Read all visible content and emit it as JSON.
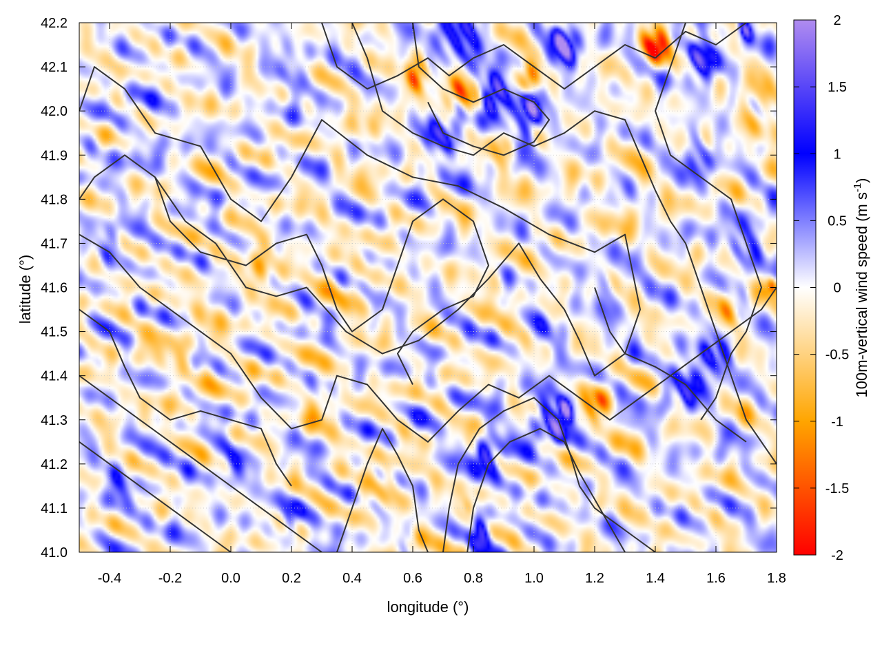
{
  "chart_data": {
    "type": "heatmap",
    "title": "",
    "xlabel": "longitude (°)",
    "ylabel": "latitude (°)",
    "colorbar_label": "100m-vertical wind speed (m s",
    "colorbar_label_sup": "-1",
    "colorbar_label_end": ")",
    "xlim": [
      -0.5,
      1.8
    ],
    "ylim": [
      41.0,
      42.2
    ],
    "clim": [
      -2,
      2
    ],
    "grid": true,
    "x_ticks": [
      "-0.4",
      "-0.2",
      "0.0",
      "0.2",
      "0.4",
      "0.6",
      "0.8",
      "1.0",
      "1.2",
      "1.4",
      "1.6",
      "1.8"
    ],
    "x_tick_values": [
      -0.4,
      -0.2,
      0.0,
      0.2,
      0.4,
      0.6,
      0.8,
      1.0,
      1.2,
      1.4,
      1.6,
      1.8
    ],
    "y_ticks": [
      "41.0",
      "41.1",
      "41.2",
      "41.3",
      "41.4",
      "41.5",
      "41.6",
      "41.7",
      "41.8",
      "41.9",
      "42.0",
      "42.1",
      "42.2"
    ],
    "y_tick_values": [
      41.0,
      41.1,
      41.2,
      41.3,
      41.4,
      41.5,
      41.6,
      41.7,
      41.8,
      41.9,
      42.0,
      42.1,
      42.2
    ],
    "colorbar_ticks": [
      "2",
      "1.5",
      "1",
      "0.5",
      "0",
      "-0.5",
      "-1",
      "-1.5",
      "-2"
    ],
    "colorbar_tick_values": [
      2,
      1.5,
      1,
      0.5,
      0,
      -0.5,
      -1,
      -1.5,
      -2
    ],
    "colormap": [
      {
        "value": -2,
        "color": "#ff0000"
      },
      {
        "value": -1,
        "color": "#ffa500"
      },
      {
        "value": 0,
        "color": "#ffffff"
      },
      {
        "value": 1,
        "color": "#0000ff"
      },
      {
        "value": 2,
        "color": "#b08cf0"
      }
    ],
    "hotspots": [
      {
        "lon": 0.75,
        "lat": 42.04,
        "value": -1.9,
        "r": 0.06
      },
      {
        "lon": 0.62,
        "lat": 42.08,
        "value": -1.8,
        "r": 0.04
      },
      {
        "lon": 0.98,
        "lat": 42.07,
        "value": -1.8,
        "r": 0.04
      },
      {
        "lon": 1.4,
        "lat": 42.15,
        "value": -1.8,
        "r": 0.05
      },
      {
        "lon": 0.86,
        "lat": 42.03,
        "value": 1.9,
        "r": 0.05
      },
      {
        "lon": 0.98,
        "lat": 42.0,
        "value": 1.8,
        "r": 0.06
      },
      {
        "lon": 0.75,
        "lat": 42.15,
        "value": 1.4,
        "r": 0.08
      },
      {
        "lon": 1.1,
        "lat": 42.15,
        "value": 1.9,
        "r": 0.05
      },
      {
        "lon": 1.55,
        "lat": 42.12,
        "value": 1.3,
        "r": 0.06
      },
      {
        "lon": 1.7,
        "lat": 42.19,
        "value": 1.9,
        "r": 0.03
      },
      {
        "lon": 0.7,
        "lat": 41.95,
        "value": 1.2,
        "r": 0.07
      },
      {
        "lon": 0.9,
        "lat": 41.92,
        "value": -0.7,
        "r": 0.05
      },
      {
        "lon": 1.05,
        "lat": 41.3,
        "value": 1.5,
        "r": 0.06
      },
      {
        "lon": 1.1,
        "lat": 41.32,
        "value": 1.9,
        "r": 0.03
      },
      {
        "lon": 1.2,
        "lat": 41.33,
        "value": -1.5,
        "r": 0.04
      },
      {
        "lon": 0.85,
        "lat": 41.22,
        "value": 1.3,
        "r": 0.06
      },
      {
        "lon": 0.82,
        "lat": 41.05,
        "value": 1.4,
        "r": 0.04
      },
      {
        "lon": 0.78,
        "lat": 41.1,
        "value": -0.9,
        "r": 0.03
      },
      {
        "lon": 1.6,
        "lat": 41.45,
        "value": 1.4,
        "r": 0.05
      },
      {
        "lon": 1.65,
        "lat": 41.55,
        "value": -0.9,
        "r": 0.05
      },
      {
        "lon": 1.5,
        "lat": 41.38,
        "value": 1.2,
        "r": 0.06
      },
      {
        "lon": 1.78,
        "lat": 41.6,
        "value": -1.7,
        "r": 0.02
      },
      {
        "lon": 1.7,
        "lat": 41.7,
        "value": 1.0,
        "r": 0.06
      },
      {
        "lon": 1.75,
        "lat": 42.0,
        "value": -0.6,
        "r": 0.08
      },
      {
        "lon": 1.55,
        "lat": 41.9,
        "value": 1.0,
        "r": 0.05
      },
      {
        "lon": 0.1,
        "lat": 41.65,
        "value": -0.6,
        "r": 0.08
      },
      {
        "lon": -0.15,
        "lat": 41.45,
        "value": -0.35,
        "r": 0.12
      },
      {
        "lon": 0.3,
        "lat": 41.35,
        "value": -0.5,
        "r": 0.06
      },
      {
        "lon": 0.5,
        "lat": 41.15,
        "value": -0.7,
        "r": 0.06
      },
      {
        "lon": 0.6,
        "lat": 41.02,
        "value": -1.0,
        "r": 0.03
      },
      {
        "lon": 0.2,
        "lat": 41.08,
        "value": 0.9,
        "r": 0.04
      },
      {
        "lon": -0.4,
        "lat": 41.7,
        "value": 0.7,
        "r": 0.05
      },
      {
        "lon": -0.35,
        "lat": 41.15,
        "value": 0.6,
        "r": 0.06
      },
      {
        "lon": 0.0,
        "lat": 41.2,
        "value": 0.6,
        "r": 0.06
      },
      {
        "lon": 0.4,
        "lat": 41.6,
        "value": -0.3,
        "r": 0.1
      },
      {
        "lon": 0.9,
        "lat": 41.6,
        "value": -0.2,
        "r": 0.12
      },
      {
        "lon": 1.3,
        "lat": 41.8,
        "value": -0.3,
        "r": 0.08
      },
      {
        "lon": 0.2,
        "lat": 42.1,
        "value": 0.4,
        "r": 0.08
      },
      {
        "lon": -0.3,
        "lat": 41.95,
        "value": 0.3,
        "r": 0.1
      },
      {
        "lon": 0.45,
        "lat": 41.95,
        "value": -0.4,
        "r": 0.06
      },
      {
        "lon": 1.25,
        "lat": 41.6,
        "value": 0.5,
        "r": 0.06
      },
      {
        "lon": 1.05,
        "lat": 41.5,
        "value": 0.5,
        "r": 0.06
      }
    ],
    "contours": [
      [
        [
          -0.5,
          42.0
        ],
        [
          -0.45,
          42.1
        ],
        [
          -0.35,
          42.05
        ],
        [
          -0.25,
          41.95
        ],
        [
          -0.1,
          41.92
        ],
        [
          0.0,
          41.8
        ],
        [
          0.1,
          41.75
        ],
        [
          0.2,
          41.85
        ],
        [
          0.3,
          41.98
        ],
        [
          0.45,
          41.9
        ],
        [
          0.6,
          41.85
        ],
        [
          0.75,
          41.83
        ],
        [
          0.9,
          41.78
        ],
        [
          1.05,
          41.72
        ],
        [
          1.2,
          41.68
        ],
        [
          1.3,
          41.72
        ],
        [
          1.35,
          41.55
        ],
        [
          1.3,
          41.45
        ],
        [
          1.2,
          41.4
        ],
        [
          1.15,
          41.48
        ],
        [
          1.1,
          41.55
        ],
        [
          1.02,
          41.62
        ],
        [
          0.95,
          41.7
        ],
        [
          0.85,
          41.62
        ],
        [
          0.75,
          41.55
        ],
        [
          0.62,
          41.48
        ],
        [
          0.5,
          41.45
        ],
        [
          0.38,
          41.5
        ],
        [
          0.25,
          41.6
        ],
        [
          0.15,
          41.58
        ],
        [
          0.05,
          41.6
        ],
        [
          -0.05,
          41.7
        ],
        [
          -0.15,
          41.75
        ],
        [
          -0.25,
          41.85
        ],
        [
          -0.35,
          41.9
        ],
        [
          -0.45,
          41.85
        ],
        [
          -0.5,
          41.8
        ]
      ],
      [
        [
          -0.5,
          41.72
        ],
        [
          -0.4,
          41.68
        ],
        [
          -0.3,
          41.6
        ],
        [
          -0.2,
          41.55
        ],
        [
          -0.1,
          41.5
        ],
        [
          0.0,
          41.45
        ],
        [
          0.1,
          41.35
        ],
        [
          0.2,
          41.28
        ],
        [
          0.3,
          41.3
        ],
        [
          0.35,
          41.4
        ],
        [
          0.45,
          41.38
        ],
        [
          0.55,
          41.3
        ],
        [
          0.65,
          41.25
        ],
        [
          0.75,
          41.32
        ],
        [
          0.85,
          41.38
        ],
        [
          0.95,
          41.35
        ],
        [
          1.05,
          41.4
        ],
        [
          1.15,
          41.35
        ],
        [
          1.25,
          41.3
        ],
        [
          1.35,
          41.35
        ],
        [
          1.45,
          41.4
        ],
        [
          1.55,
          41.45
        ],
        [
          1.65,
          41.5
        ],
        [
          1.75,
          41.55
        ],
        [
          1.8,
          41.6
        ]
      ],
      [
        [
          -0.25,
          41.85
        ],
        [
          -0.2,
          41.75
        ],
        [
          -0.1,
          41.68
        ],
        [
          0.05,
          41.65
        ],
        [
          0.15,
          41.7
        ],
        [
          0.25,
          41.72
        ],
        [
          0.3,
          41.65
        ],
        [
          0.35,
          41.55
        ],
        [
          0.4,
          41.5
        ],
        [
          0.5,
          41.55
        ],
        [
          0.55,
          41.65
        ],
        [
          0.6,
          41.75
        ],
        [
          0.7,
          41.8
        ],
        [
          0.8,
          41.75
        ],
        [
          0.85,
          41.65
        ],
        [
          0.8,
          41.58
        ],
        [
          0.7,
          41.55
        ],
        [
          0.6,
          41.5
        ],
        [
          0.55,
          41.45
        ],
        [
          0.6,
          41.38
        ]
      ],
      [
        [
          0.3,
          42.2
        ],
        [
          0.35,
          42.1
        ],
        [
          0.45,
          42.05
        ],
        [
          0.55,
          42.08
        ],
        [
          0.65,
          42.12
        ],
        [
          0.72,
          42.08
        ],
        [
          0.8,
          42.12
        ],
        [
          0.9,
          42.15
        ],
        [
          1.0,
          42.1
        ],
        [
          1.1,
          42.05
        ],
        [
          1.2,
          42.1
        ],
        [
          1.3,
          42.15
        ],
        [
          1.4,
          42.12
        ],
        [
          1.5,
          42.18
        ],
        [
          1.6,
          42.15
        ],
        [
          1.7,
          42.2
        ]
      ],
      [
        [
          0.4,
          42.2
        ],
        [
          0.45,
          42.12
        ],
        [
          0.5,
          42.0
        ],
        [
          0.6,
          41.95
        ],
        [
          0.7,
          41.92
        ],
        [
          0.8,
          41.9
        ],
        [
          0.9,
          41.95
        ],
        [
          1.0,
          41.92
        ],
        [
          1.1,
          41.95
        ],
        [
          1.2,
          42.0
        ],
        [
          1.3,
          41.98
        ],
        [
          1.35,
          41.9
        ],
        [
          1.4,
          41.82
        ],
        [
          1.45,
          41.75
        ],
        [
          1.5,
          41.7
        ],
        [
          1.55,
          41.6
        ],
        [
          1.6,
          41.5
        ],
        [
          1.65,
          41.4
        ],
        [
          1.7,
          41.3
        ],
        [
          1.75,
          41.25
        ],
        [
          1.8,
          41.2
        ]
      ],
      [
        [
          1.5,
          42.2
        ],
        [
          1.45,
          42.1
        ],
        [
          1.4,
          42.0
        ],
        [
          1.45,
          41.9
        ],
        [
          1.55,
          41.85
        ],
        [
          1.65,
          41.8
        ],
        [
          1.7,
          41.7
        ],
        [
          1.75,
          41.6
        ],
        [
          1.7,
          41.5
        ],
        [
          1.65,
          41.45
        ],
        [
          1.6,
          41.35
        ],
        [
          1.55,
          41.3
        ]
      ],
      [
        [
          -0.5,
          41.4
        ],
        [
          -0.4,
          41.35
        ],
        [
          -0.3,
          41.3
        ],
        [
          -0.2,
          41.25
        ],
        [
          -0.1,
          41.2
        ],
        [
          0.0,
          41.15
        ],
        [
          0.1,
          41.1
        ],
        [
          0.2,
          41.05
        ],
        [
          0.3,
          41.0
        ]
      ],
      [
        [
          -0.5,
          41.25
        ],
        [
          -0.4,
          41.2
        ],
        [
          -0.3,
          41.15
        ],
        [
          -0.2,
          41.1
        ],
        [
          -0.1,
          41.05
        ],
        [
          0.0,
          41.0
        ]
      ],
      [
        [
          0.35,
          41.0
        ],
        [
          0.4,
          41.1
        ],
        [
          0.45,
          41.2
        ],
        [
          0.5,
          41.28
        ],
        [
          0.55,
          41.22
        ],
        [
          0.6,
          41.15
        ],
        [
          0.62,
          41.05
        ],
        [
          0.65,
          41.0
        ]
      ],
      [
        [
          0.7,
          41.0
        ],
        [
          0.72,
          41.1
        ],
        [
          0.75,
          41.2
        ],
        [
          0.82,
          41.28
        ],
        [
          0.9,
          41.32
        ],
        [
          1.0,
          41.35
        ],
        [
          1.08,
          41.3
        ],
        [
          1.12,
          41.22
        ],
        [
          1.15,
          41.15
        ],
        [
          1.2,
          41.1
        ],
        [
          1.3,
          41.05
        ],
        [
          1.4,
          41.0
        ]
      ],
      [
        [
          0.78,
          41.0
        ],
        [
          0.8,
          41.1
        ],
        [
          0.85,
          41.2
        ],
        [
          0.92,
          41.25
        ],
        [
          1.02,
          41.28
        ],
        [
          1.1,
          41.25
        ],
        [
          1.15,
          41.18
        ],
        [
          1.2,
          41.12
        ],
        [
          1.25,
          41.06
        ],
        [
          1.3,
          41.0
        ]
      ],
      [
        [
          0.6,
          42.2
        ],
        [
          0.62,
          42.1
        ],
        [
          0.7,
          42.05
        ],
        [
          0.8,
          42.02
        ],
        [
          0.9,
          42.05
        ],
        [
          1.0,
          42.02
        ],
        [
          1.05,
          41.98
        ],
        [
          1.0,
          41.93
        ],
        [
          0.9,
          41.9
        ],
        [
          0.8,
          41.92
        ],
        [
          0.7,
          41.95
        ],
        [
          0.65,
          42.02
        ]
      ],
      [
        [
          1.2,
          41.6
        ],
        [
          1.25,
          41.5
        ],
        [
          1.3,
          41.45
        ],
        [
          1.4,
          41.42
        ],
        [
          1.5,
          41.38
        ],
        [
          1.6,
          41.3
        ],
        [
          1.7,
          41.25
        ]
      ],
      [
        [
          -0.5,
          41.55
        ],
        [
          -0.4,
          41.5
        ],
        [
          -0.35,
          41.42
        ],
        [
          -0.3,
          41.35
        ],
        [
          -0.2,
          41.3
        ],
        [
          -0.1,
          41.32
        ],
        [
          0.0,
          41.3
        ],
        [
          0.1,
          41.28
        ],
        [
          0.15,
          41.2
        ],
        [
          0.2,
          41.15
        ]
      ]
    ]
  }
}
